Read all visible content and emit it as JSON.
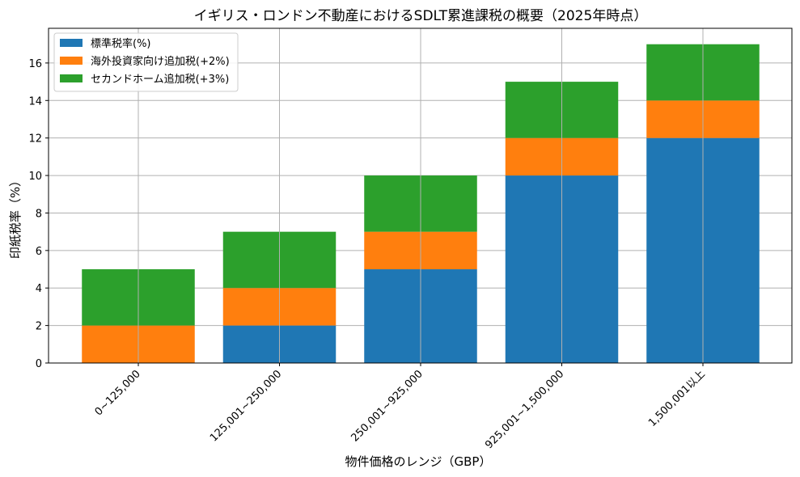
{
  "chart_data": {
    "type": "bar",
    "stacked": true,
    "title": "イギリス・ロンドン不動産におけるSDLT累進課税の概要（2025年時点）",
    "xlabel": "物件価格のレンジ（GBP）",
    "ylabel": "印紙税率（%）",
    "categories": [
      "0~125,000",
      "125,001~250,000",
      "250,001~925,000",
      "925,001~1,500,000",
      "1,500,001以上"
    ],
    "series": [
      {
        "name": "標準税率(%)",
        "values": [
          0,
          2,
          5,
          10,
          12
        ],
        "color": "#1f77b4"
      },
      {
        "name": "海外投資家向け追加税(+2%)",
        "values": [
          2,
          2,
          2,
          2,
          2
        ],
        "color": "#ff7f0e"
      },
      {
        "name": "セカンドホーム追加税(+3%)",
        "values": [
          3,
          3,
          3,
          3,
          3
        ],
        "color": "#2ca02c"
      }
    ],
    "ylim": [
      0,
      17.85
    ],
    "yticks": [
      0,
      2,
      4,
      6,
      8,
      10,
      12,
      14,
      16
    ],
    "grid": true,
    "legend_position": "top-left"
  }
}
